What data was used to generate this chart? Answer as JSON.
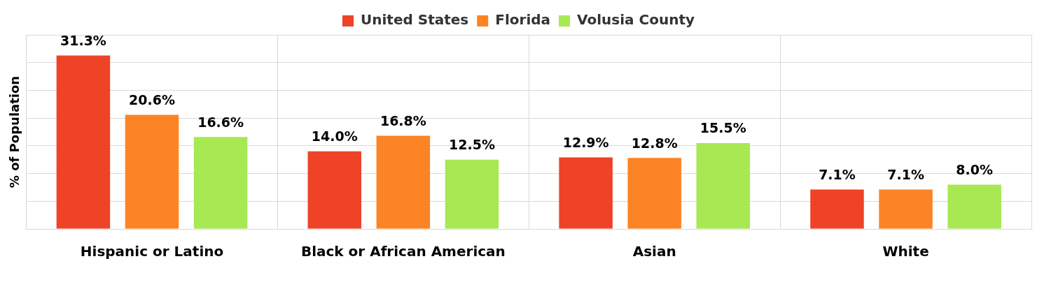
{
  "chart_data": {
    "type": "bar",
    "ylabel": "% of Population",
    "categories": [
      "Hispanic or Latino",
      "Black or African American",
      "Asian",
      "White"
    ],
    "series": [
      {
        "name": "United States",
        "color": "#ee4327",
        "values": [
          31.3,
          14.0,
          12.9,
          7.1
        ],
        "value_labels": [
          "31.3%",
          "14.0%",
          "12.9%",
          "7.1%"
        ]
      },
      {
        "name": "Florida",
        "color": "#fd8424",
        "values": [
          20.6,
          16.8,
          12.8,
          7.1
        ],
        "value_labels": [
          "20.6%",
          "16.8%",
          "12.8%",
          "7.1%"
        ]
      },
      {
        "name": "Volusia County",
        "color": "#a8e853",
        "values": [
          16.6,
          12.5,
          15.5,
          8.0
        ],
        "value_labels": [
          "16.6%",
          "12.5%",
          "15.5%",
          "8.0%"
        ]
      }
    ],
    "ylim": [
      0,
      35
    ],
    "yticks": [
      {
        "value": 0,
        "label": null
      },
      {
        "value": 5,
        "label": null
      },
      {
        "value": 10,
        "label": null
      },
      {
        "value": 15,
        "label": null
      },
      {
        "value": 20,
        "label": null
      },
      {
        "value": 25,
        "label": null
      },
      {
        "value": 30,
        "label": null
      },
      {
        "value": 35,
        "label": null
      }
    ],
    "tick_labels": "x",
    "grid": true,
    "legend": "top"
  }
}
